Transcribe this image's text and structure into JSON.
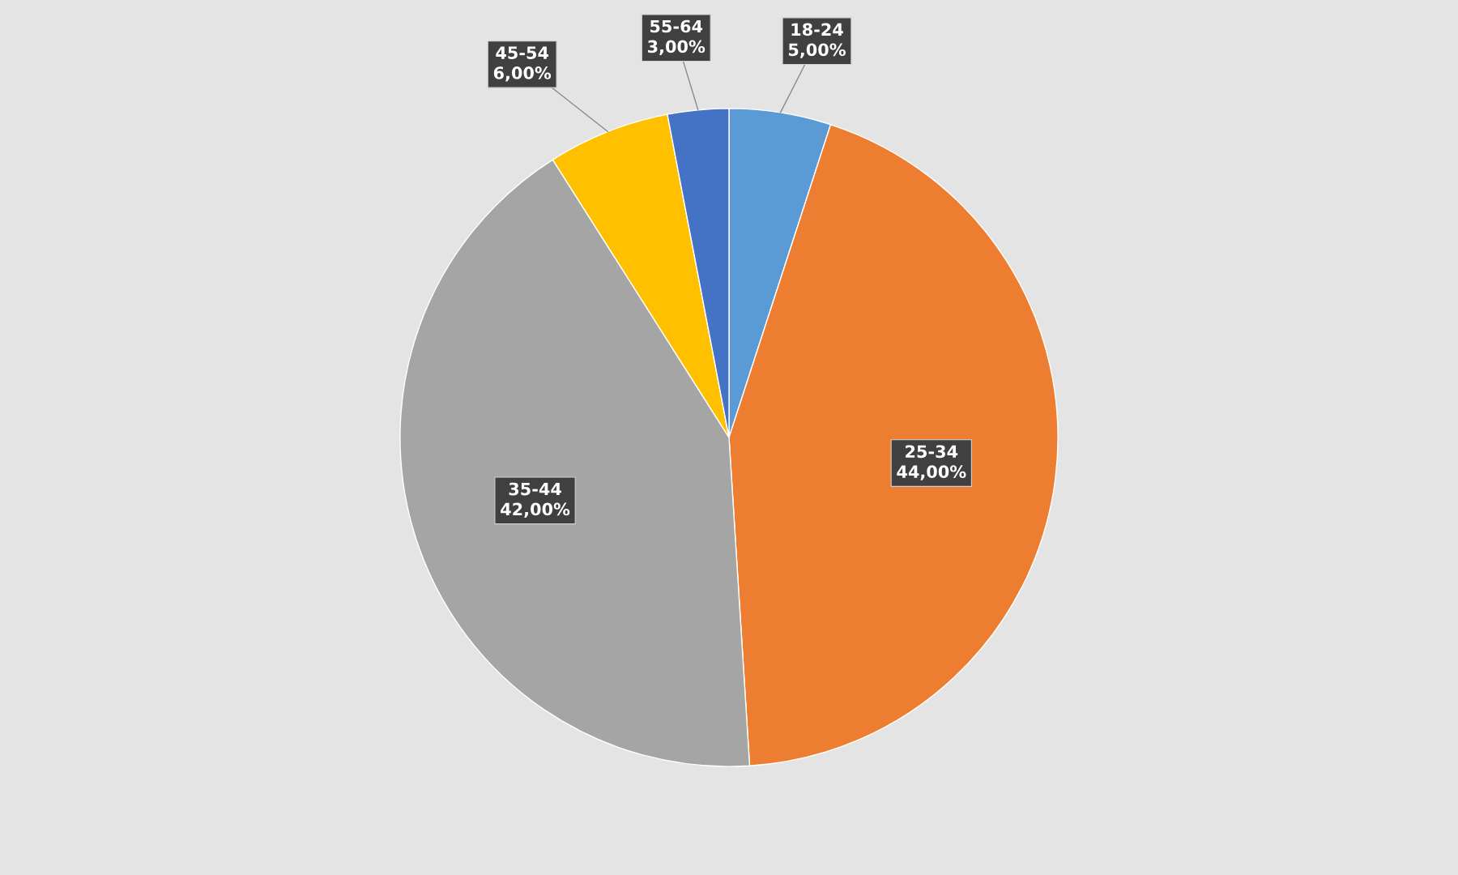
{
  "chart_data": {
    "type": "pie",
    "categories": [
      "18-24",
      "25-34",
      "35-44",
      "45-54",
      "55-64"
    ],
    "values": [
      5,
      44,
      42,
      6,
      3
    ],
    "value_labels": [
      "5,00%",
      "44,00%",
      "42,00%",
      "6,00%",
      "3,00%"
    ],
    "colors": [
      "#5b9bd5",
      "#ed7d31",
      "#a5a5a5",
      "#ffc000",
      "#4472c4"
    ]
  }
}
